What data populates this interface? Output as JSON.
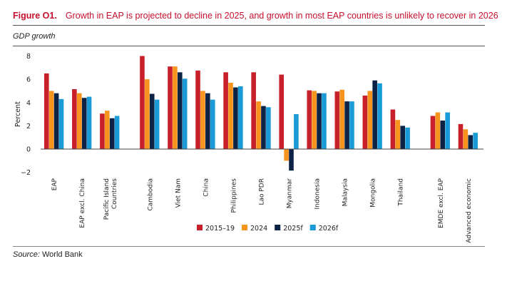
{
  "figure": {
    "number": "Figure O1.",
    "title": "Growth in EAP is projected to decline in 2025, and growth in most EAP countries is unlikely to recover in 2026",
    "subtitle": "GDP growth",
    "source_label": "Source:",
    "source_text": "World Bank"
  },
  "chart_data": {
    "type": "bar",
    "title": "Growth in EAP is projected to decline in 2025, and growth in most EAP countries is unlikely to recover in 2026",
    "subtitle": "GDP growth",
    "xlabel": "",
    "ylabel": "Percent",
    "ylim": [
      -2,
      8
    ],
    "yticks": [
      8,
      6,
      4,
      2,
      0,
      -2
    ],
    "ytick_labels": [
      "8",
      "6",
      "4",
      "2",
      "0",
      "−2"
    ],
    "grid": false,
    "legend_position": "bottom-center",
    "categories": [
      "EAP",
      "EAP excl. China",
      "Pacific Island Countries",
      "Cambodia",
      "Viet Nam",
      "China",
      "Philippines",
      "Lao PDR",
      "Myanmar",
      "Indonesia",
      "Malaysia",
      "Mongolia",
      "Thailand",
      "EMDE excl. EAP",
      "Advanced economic"
    ],
    "category_label_lines": [
      [
        "EAP"
      ],
      [
        "EAP excl. China"
      ],
      [
        "Pacific Island",
        "Countries"
      ],
      [
        "Cambodia"
      ],
      [
        "Viet Nam"
      ],
      [
        "China"
      ],
      [
        "Philippines"
      ],
      [
        "Lao PDR"
      ],
      [
        "Myanmar"
      ],
      [
        "Indonesia"
      ],
      [
        "Malaysia"
      ],
      [
        "Mongolia"
      ],
      [
        "Thailand"
      ],
      [
        "EMDE excl. EAP"
      ],
      [
        "Advanced economic"
      ]
    ],
    "category_groups": [
      0,
      0,
      0,
      1,
      1,
      1,
      1,
      1,
      1,
      1,
      1,
      1,
      1,
      2,
      2
    ],
    "series": [
      {
        "name": "2015–19",
        "color": "#c8202a",
        "values": [
          6.5,
          5.15,
          3.05,
          8.0,
          7.1,
          6.75,
          6.6,
          6.6,
          6.4,
          5.05,
          4.95,
          4.6,
          3.4,
          2.85,
          2.15
        ]
      },
      {
        "name": "2024",
        "color": "#f7941d",
        "values": [
          5.0,
          4.8,
          3.3,
          6.0,
          7.1,
          5.0,
          5.7,
          4.1,
          -1.0,
          5.0,
          5.1,
          5.0,
          2.5,
          3.15,
          1.7
        ]
      },
      {
        "name": "2025f",
        "color": "#0d2346",
        "values": [
          4.8,
          4.4,
          2.65,
          4.75,
          6.6,
          4.8,
          5.3,
          3.7,
          -1.85,
          4.8,
          4.1,
          5.9,
          2.0,
          2.45,
          1.2
        ]
      },
      {
        "name": "2026f",
        "color": "#1a9ad6",
        "values": [
          4.3,
          4.5,
          2.85,
          4.25,
          6.05,
          4.25,
          5.4,
          3.6,
          3.0,
          4.8,
          4.1,
          5.65,
          1.85,
          3.15,
          1.4
        ]
      }
    ]
  }
}
